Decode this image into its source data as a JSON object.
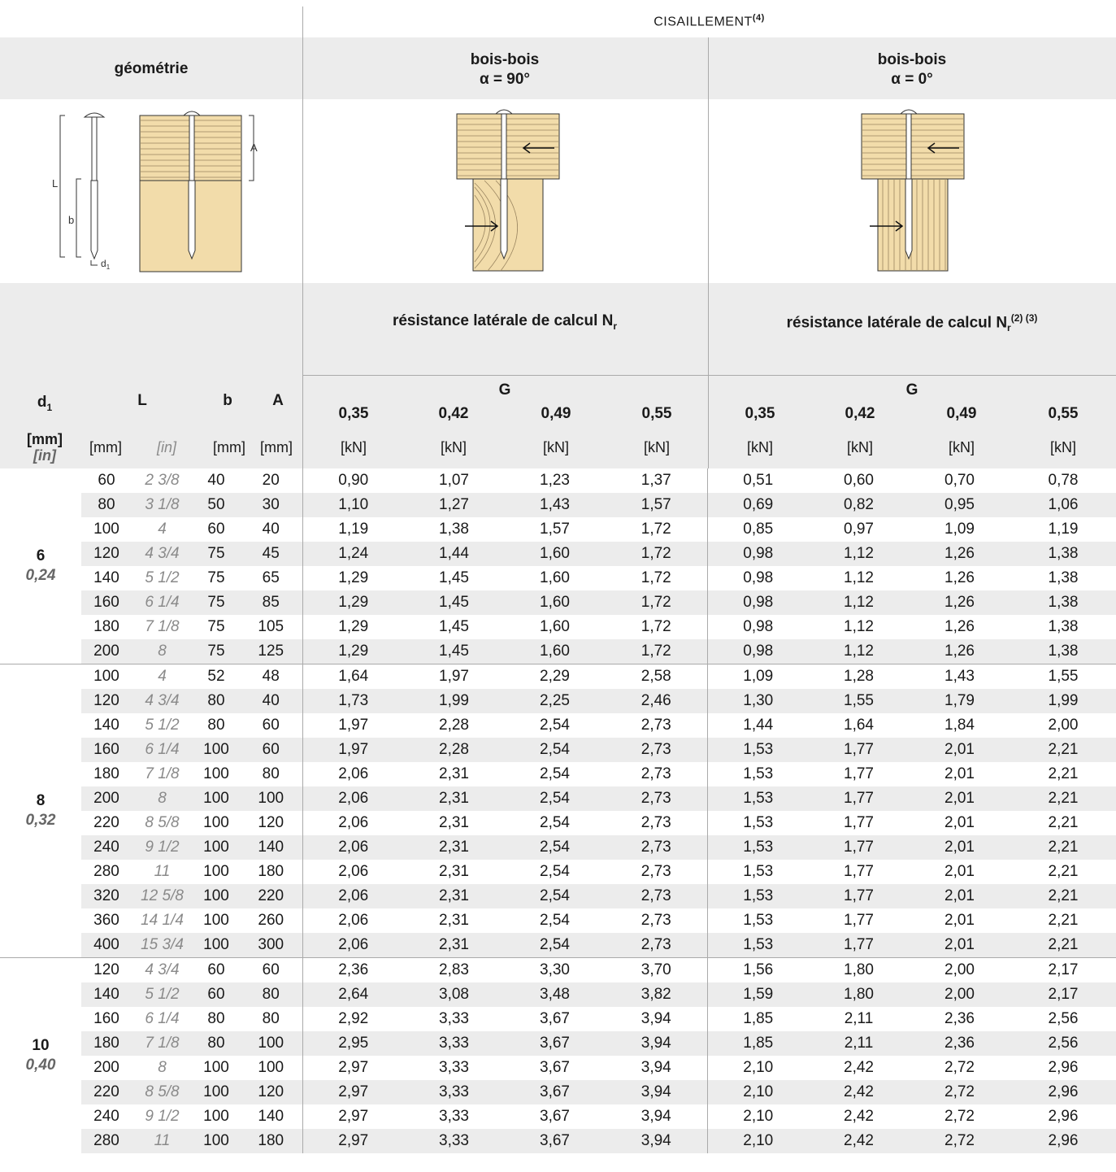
{
  "header": {
    "section_title": "CISAILLEMENT",
    "section_note": "(4)",
    "geometry_label": "géométrie",
    "case1_line1": "bois-bois",
    "case1_line2": "α = 90°",
    "case2_line1": "bois-bois",
    "case2_line2": "α = 0°",
    "resist1": "résistance latérale de calcul N",
    "resist1_sub": "r",
    "resist2": "résistance latérale de calcul N",
    "resist2_sub": "r",
    "resist2_notes": "(2) (3)",
    "g_label": "G",
    "g_values": [
      "0,35",
      "0,42",
      "0,49",
      "0,55"
    ]
  },
  "diagram_labels": {
    "L": "L",
    "b": "b",
    "A": "A",
    "d": "d",
    "d_sub": "1"
  },
  "columns": {
    "d1": "d",
    "d1_sub": "1",
    "L": "L",
    "b": "b",
    "A": "A",
    "unit_d1_mm": "[mm]",
    "unit_d1_in": "[in]",
    "unit_mm": "[mm]",
    "unit_in": "[in]",
    "unit_kn": "[kN]"
  },
  "groups": [
    {
      "d_mm": "6",
      "d_in": "0,24",
      "rows": [
        [
          "60",
          "2 3/8",
          "40",
          "20",
          "0,90",
          "1,07",
          "1,23",
          "1,37",
          "0,51",
          "0,60",
          "0,70",
          "0,78"
        ],
        [
          "80",
          "3 1/8",
          "50",
          "30",
          "1,10",
          "1,27",
          "1,43",
          "1,57",
          "0,69",
          "0,82",
          "0,95",
          "1,06"
        ],
        [
          "100",
          "4",
          "60",
          "40",
          "1,19",
          "1,38",
          "1,57",
          "1,72",
          "0,85",
          "0,97",
          "1,09",
          "1,19"
        ],
        [
          "120",
          "4 3/4",
          "75",
          "45",
          "1,24",
          "1,44",
          "1,60",
          "1,72",
          "0,98",
          "1,12",
          "1,26",
          "1,38"
        ],
        [
          "140",
          "5 1/2",
          "75",
          "65",
          "1,29",
          "1,45",
          "1,60",
          "1,72",
          "0,98",
          "1,12",
          "1,26",
          "1,38"
        ],
        [
          "160",
          "6 1/4",
          "75",
          "85",
          "1,29",
          "1,45",
          "1,60",
          "1,72",
          "0,98",
          "1,12",
          "1,26",
          "1,38"
        ],
        [
          "180",
          "7 1/8",
          "75",
          "105",
          "1,29",
          "1,45",
          "1,60",
          "1,72",
          "0,98",
          "1,12",
          "1,26",
          "1,38"
        ],
        [
          "200",
          "8",
          "75",
          "125",
          "1,29",
          "1,45",
          "1,60",
          "1,72",
          "0,98",
          "1,12",
          "1,26",
          "1,38"
        ]
      ]
    },
    {
      "d_mm": "8",
      "d_in": "0,32",
      "rows": [
        [
          "100",
          "4",
          "52",
          "48",
          "1,64",
          "1,97",
          "2,29",
          "2,58",
          "1,09",
          "1,28",
          "1,43",
          "1,55"
        ],
        [
          "120",
          "4 3/4",
          "80",
          "40",
          "1,73",
          "1,99",
          "2,25",
          "2,46",
          "1,30",
          "1,55",
          "1,79",
          "1,99"
        ],
        [
          "140",
          "5 1/2",
          "80",
          "60",
          "1,97",
          "2,28",
          "2,54",
          "2,73",
          "1,44",
          "1,64",
          "1,84",
          "2,00"
        ],
        [
          "160",
          "6 1/4",
          "100",
          "60",
          "1,97",
          "2,28",
          "2,54",
          "2,73",
          "1,53",
          "1,77",
          "2,01",
          "2,21"
        ],
        [
          "180",
          "7 1/8",
          "100",
          "80",
          "2,06",
          "2,31",
          "2,54",
          "2,73",
          "1,53",
          "1,77",
          "2,01",
          "2,21"
        ],
        [
          "200",
          "8",
          "100",
          "100",
          "2,06",
          "2,31",
          "2,54",
          "2,73",
          "1,53",
          "1,77",
          "2,01",
          "2,21"
        ],
        [
          "220",
          "8 5/8",
          "100",
          "120",
          "2,06",
          "2,31",
          "2,54",
          "2,73",
          "1,53",
          "1,77",
          "2,01",
          "2,21"
        ],
        [
          "240",
          "9 1/2",
          "100",
          "140",
          "2,06",
          "2,31",
          "2,54",
          "2,73",
          "1,53",
          "1,77",
          "2,01",
          "2,21"
        ],
        [
          "280",
          "11",
          "100",
          "180",
          "2,06",
          "2,31",
          "2,54",
          "2,73",
          "1,53",
          "1,77",
          "2,01",
          "2,21"
        ],
        [
          "320",
          "12 5/8",
          "100",
          "220",
          "2,06",
          "2,31",
          "2,54",
          "2,73",
          "1,53",
          "1,77",
          "2,01",
          "2,21"
        ],
        [
          "360",
          "14 1/4",
          "100",
          "260",
          "2,06",
          "2,31",
          "2,54",
          "2,73",
          "1,53",
          "1,77",
          "2,01",
          "2,21"
        ],
        [
          "400",
          "15 3/4",
          "100",
          "300",
          "2,06",
          "2,31",
          "2,54",
          "2,73",
          "1,53",
          "1,77",
          "2,01",
          "2,21"
        ]
      ]
    },
    {
      "d_mm": "10",
      "d_in": "0,40",
      "rows": [
        [
          "120",
          "4 3/4",
          "60",
          "60",
          "2,36",
          "2,83",
          "3,30",
          "3,70",
          "1,56",
          "1,80",
          "2,00",
          "2,17"
        ],
        [
          "140",
          "5 1/2",
          "60",
          "80",
          "2,64",
          "3,08",
          "3,48",
          "3,82",
          "1,59",
          "1,80",
          "2,00",
          "2,17"
        ],
        [
          "160",
          "6 1/4",
          "80",
          "80",
          "2,92",
          "3,33",
          "3,67",
          "3,94",
          "1,85",
          "2,11",
          "2,36",
          "2,56"
        ],
        [
          "180",
          "7 1/8",
          "80",
          "100",
          "2,95",
          "3,33",
          "3,67",
          "3,94",
          "1,85",
          "2,11",
          "2,36",
          "2,56"
        ],
        [
          "200",
          "8",
          "100",
          "100",
          "2,97",
          "3,33",
          "3,67",
          "3,94",
          "2,10",
          "2,42",
          "2,72",
          "2,96"
        ],
        [
          "220",
          "8 5/8",
          "100",
          "120",
          "2,97",
          "3,33",
          "3,67",
          "3,94",
          "2,10",
          "2,42",
          "2,72",
          "2,96"
        ],
        [
          "240",
          "9 1/2",
          "100",
          "140",
          "2,97",
          "3,33",
          "3,67",
          "3,94",
          "2,10",
          "2,42",
          "2,72",
          "2,96"
        ],
        [
          "280",
          "11",
          "100",
          "180",
          "2,97",
          "3,33",
          "3,67",
          "3,94",
          "2,10",
          "2,42",
          "2,72",
          "2,96"
        ]
      ]
    }
  ],
  "colors": {
    "wood": "#f2dcaa",
    "band": "#ececec",
    "rule": "#aaaaaa",
    "muted": "#8a8a8a"
  }
}
